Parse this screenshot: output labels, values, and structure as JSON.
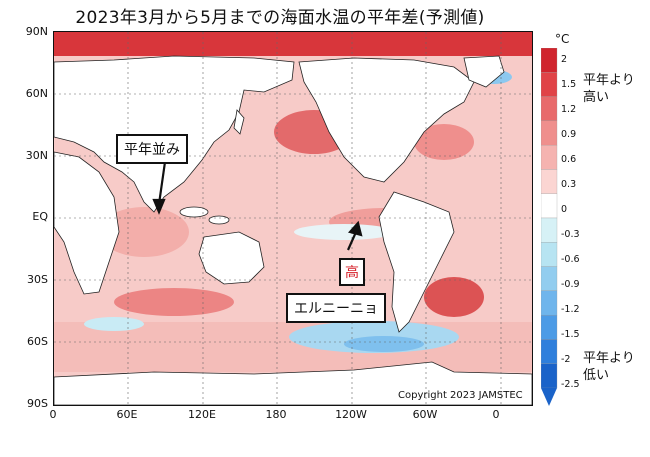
{
  "title": "2023年3月から5月までの海面水温の平年差(予測値)",
  "y_axis_labels": [
    "90N",
    "60N",
    "30N",
    "EQ",
    "30S",
    "60S",
    "90S"
  ],
  "x_axis_labels": [
    "0",
    "60E",
    "120E",
    "180",
    "120W",
    "60W",
    "0"
  ],
  "callouts": {
    "normal": "平年並み",
    "high": "高",
    "el_nino": "エルニーニョ"
  },
  "copyright": "Copyright 2023 JAMSTEC",
  "colorbar": {
    "unit": "°C",
    "ticks": [
      "2",
      "1.5",
      "1.2",
      "0.9",
      "0.6",
      "0.3",
      "0",
      "-0.3",
      "-0.6",
      "-0.9",
      "-1.2",
      "-1.5",
      "-2",
      "-2.5"
    ],
    "colors": [
      "#d0242d",
      "#e04347",
      "#e86a6b",
      "#ef8f8d",
      "#f5b3b0",
      "#fbd5d2",
      "#ffffff",
      "#d6f1f6",
      "#b7e4f2",
      "#92cdef",
      "#6fb5ec",
      "#4c9be6",
      "#2f7fdc",
      "#1a63c9"
    ],
    "above_label_1": "平年より",
    "above_label_2": "高い",
    "below_label_1": "平年より",
    "below_label_2": "低い"
  }
}
